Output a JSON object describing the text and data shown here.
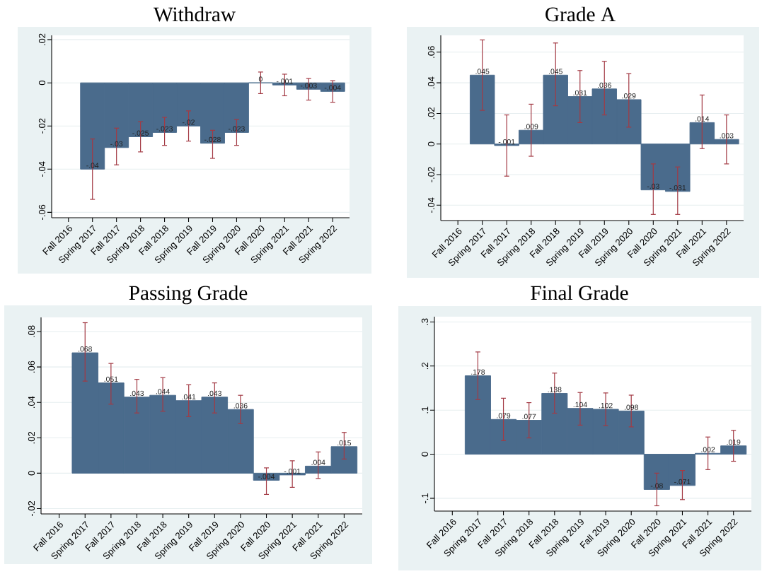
{
  "chart_data": [
    {
      "type": "bar",
      "title": "Withdraw",
      "categories": [
        "Fall 2016",
        "Spring 2017",
        "Fall 2017",
        "Spring 2018",
        "Fall 2018",
        "Spring 2019",
        "Fall 2019",
        "Spring 2020",
        "Fall 2020",
        "Spring 2021",
        "Fall 2021",
        "Spring 2022"
      ],
      "values": [
        null,
        -0.04,
        -0.03,
        -0.025,
        -0.023,
        -0.02,
        -0.028,
        -0.023,
        0,
        -0.001,
        -0.003,
        -0.004
      ],
      "value_labels": [
        null,
        "-.04",
        "-.03",
        "-.025",
        "-.023",
        "-.02",
        "-.028",
        "-.023",
        "0",
        "-.001",
        "-.003",
        "-.004"
      ],
      "errors": [
        null,
        [
          -0.054,
          -0.026
        ],
        [
          -0.038,
          -0.021
        ],
        [
          -0.032,
          -0.018
        ],
        [
          -0.029,
          -0.016
        ],
        [
          -0.027,
          -0.013
        ],
        [
          -0.035,
          -0.022
        ],
        [
          -0.029,
          -0.017
        ],
        [
          -0.005,
          0.005
        ],
        [
          -0.006,
          0.004
        ],
        [
          -0.008,
          0.002
        ],
        [
          -0.009,
          0.001
        ]
      ],
      "color": "#4a6b8c",
      "ylim": [
        -0.0625,
        0.022
      ],
      "yticks": [
        {
          "value": -0.06,
          "label": "-.06"
        },
        {
          "value": -0.04,
          "label": "-.04"
        },
        {
          "value": -0.02,
          "label": "-.02"
        },
        0,
        {
          "value": 0.02,
          "label": ".02"
        }
      ],
      "grid": "y"
    },
    {
      "type": "bar",
      "title": "Grade A",
      "categories": [
        "Fall 2016",
        "Spring 2017",
        "Fall 2017",
        "Spring 2018",
        "Fall 2018",
        "Spring 2019",
        "Fall 2019",
        "Spring 2020",
        "Fall 2020",
        "Spring 2021",
        "Fall 2021",
        "Spring 2022"
      ],
      "values": [
        null,
        0.045,
        -0.001,
        0.009,
        0.045,
        0.031,
        0.036,
        0.029,
        -0.03,
        -0.031,
        0.014,
        0.003
      ],
      "value_labels": [
        null,
        ".045",
        "-.001",
        ".009",
        ".045",
        ".031",
        ".036",
        ".029",
        "-.03",
        "-.031",
        ".014",
        ".003"
      ],
      "errors": [
        null,
        [
          0.022,
          0.068
        ],
        [
          -0.021,
          0.019
        ],
        [
          -0.008,
          0.026
        ],
        [
          0.025,
          0.066
        ],
        [
          0.014,
          0.048
        ],
        [
          0.019,
          0.054
        ],
        [
          0.011,
          0.046
        ],
        [
          -0.046,
          -0.013
        ],
        [
          -0.046,
          -0.015
        ],
        [
          -0.003,
          0.032
        ],
        [
          -0.013,
          0.019
        ]
      ],
      "color": "#4a6b8c",
      "ylim": [
        -0.05,
        0.071
      ],
      "yticks": [
        {
          "value": -0.04,
          "label": "-.04"
        },
        {
          "value": -0.02,
          "label": "-.02"
        },
        0,
        {
          "value": 0.02,
          "label": ".02"
        },
        {
          "value": 0.04,
          "label": ".04"
        },
        {
          "value": 0.06,
          "label": ".06"
        }
      ],
      "grid": "y"
    },
    {
      "type": "bar",
      "title": "Passing Grade",
      "categories": [
        "Fall 2016",
        "Spring 2017",
        "Fall 2017",
        "Spring 2018",
        "Fall 2018",
        "Spring 2019",
        "Fall 2019",
        "Spring 2020",
        "Fall 2020",
        "Spring 2021",
        "Fall 2021",
        "Spring 2022"
      ],
      "values": [
        null,
        0.068,
        0.051,
        0.043,
        0.044,
        0.041,
        0.043,
        0.036,
        -0.004,
        -0.001,
        0.004,
        0.015
      ],
      "value_labels": [
        null,
        ".068",
        ".051",
        ".043",
        ".044",
        ".041",
        ".043",
        ".036",
        "-.004",
        "-.001",
        ".004",
        ".015"
      ],
      "errors": [
        null,
        [
          0.052,
          0.085
        ],
        [
          0.039,
          0.062
        ],
        [
          0.034,
          0.053
        ],
        [
          0.035,
          0.054
        ],
        [
          0.032,
          0.05
        ],
        [
          0.034,
          0.051
        ],
        [
          0.028,
          0.044
        ],
        [
          -0.012,
          0.003
        ],
        [
          -0.008,
          0.007
        ],
        [
          -0.003,
          0.012
        ],
        [
          0.008,
          0.023
        ]
      ],
      "color": "#4a6b8c",
      "ylim": [
        -0.023,
        0.088
      ],
      "yticks": [
        {
          "value": -0.02,
          "label": "-.02"
        },
        0,
        {
          "value": 0.02,
          "label": ".02"
        },
        {
          "value": 0.04,
          "label": ".04"
        },
        {
          "value": 0.06,
          "label": ".06"
        },
        {
          "value": 0.08,
          "label": ".08"
        }
      ],
      "grid": "y"
    },
    {
      "type": "bar",
      "title": "Final Grade",
      "categories": [
        "Fall 2016",
        "Spring 2017",
        "Fall 2017",
        "Spring 2018",
        "Fall 2018",
        "Spring 2019",
        "Fall 2019",
        "Spring 2020",
        "Fall 2020",
        "Spring 2021",
        "Fall 2021",
        "Spring 2022"
      ],
      "values": [
        null,
        0.178,
        0.079,
        0.077,
        0.138,
        0.104,
        0.102,
        0.098,
        -0.08,
        -0.071,
        0.002,
        0.019
      ],
      "value_labels": [
        null,
        ".178",
        ".079",
        ".077",
        ".138",
        ".104",
        ".102",
        ".098",
        "-.08",
        "-.071",
        ".002",
        ".019"
      ],
      "errors": [
        null,
        [
          0.124,
          0.232
        ],
        [
          0.031,
          0.127
        ],
        [
          0.037,
          0.117
        ],
        [
          0.093,
          0.184
        ],
        [
          0.066,
          0.14
        ],
        [
          0.065,
          0.139
        ],
        [
          0.062,
          0.134
        ],
        [
          -0.117,
          -0.043
        ],
        [
          -0.103,
          -0.037
        ],
        [
          -0.035,
          0.039
        ],
        [
          -0.016,
          0.054
        ]
      ],
      "color": "#4a6b8c",
      "ylim": [
        -0.129,
        0.312
      ],
      "yticks": [
        {
          "value": -0.1,
          "label": "-.1"
        },
        0,
        {
          "value": 0.1,
          "label": ".1"
        },
        {
          "value": 0.2,
          "label": ".2"
        },
        {
          "value": 0.3,
          "label": ".3"
        }
      ],
      "grid": "y"
    }
  ]
}
